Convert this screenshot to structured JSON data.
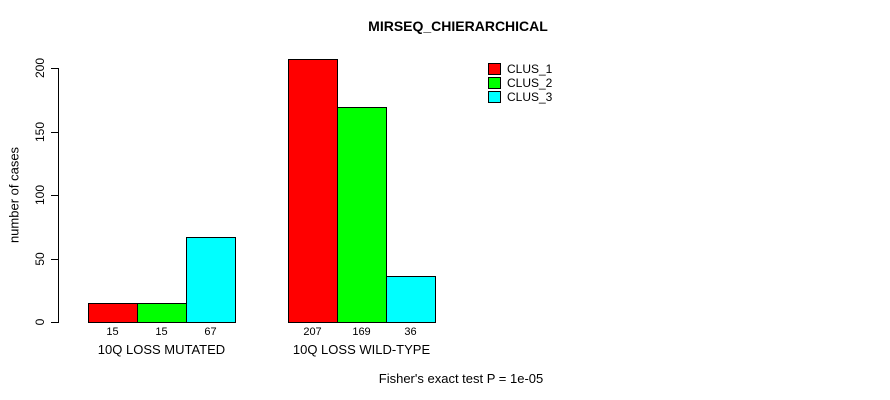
{
  "chart_data": {
    "type": "bar",
    "title": "MIRSEQ_CHIERARCHICAL",
    "xlabel": "",
    "ylabel": "number of cases",
    "categories": [
      "10Q LOSS MUTATED",
      "10Q LOSS WILD-TYPE"
    ],
    "series": [
      {
        "name": "CLUS_1",
        "color": "#ff0000",
        "values": [
          15,
          207
        ]
      },
      {
        "name": "CLUS_2",
        "color": "#00ff00",
        "values": [
          15,
          169
        ]
      },
      {
        "name": "CLUS_3",
        "color": "#00ffff",
        "values": [
          67,
          36
        ]
      }
    ],
    "ylim": [
      0,
      200
    ],
    "yticks": [
      0,
      50,
      100,
      150,
      200
    ],
    "grid": false,
    "legend_position": "top-right",
    "show_values_under_bars": true,
    "bar_border_color": "#000000"
  },
  "footer": {
    "note": "Fisher's exact test P = 1e-05"
  }
}
